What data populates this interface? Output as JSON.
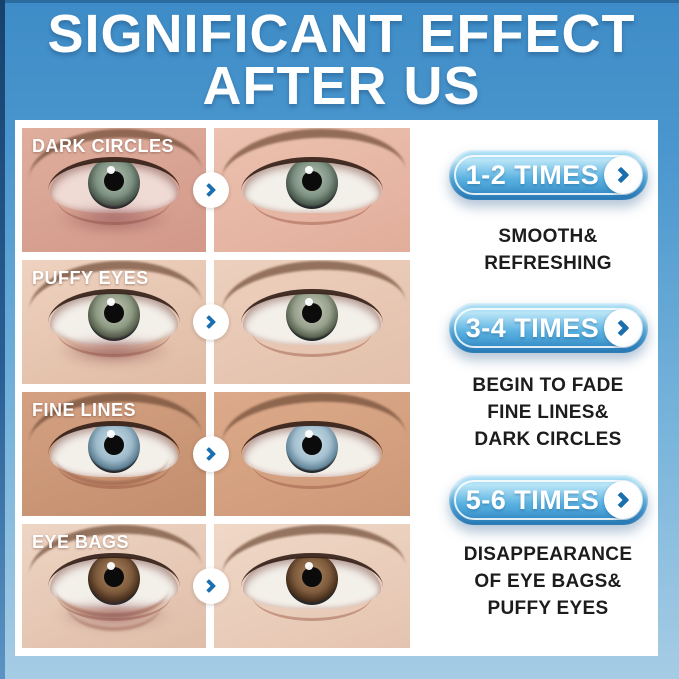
{
  "header": {
    "title_line1": "SIGNIFICANT EFFECT",
    "title_line2": "AFTER US"
  },
  "comparison": {
    "rows": [
      {
        "label": "DARK CIRCLES"
      },
      {
        "label": "PUFFY EYES"
      },
      {
        "label": "FINE LINES"
      },
      {
        "label": "EYE BAGS"
      }
    ]
  },
  "milestones": [
    {
      "times": "1-2 TIMES",
      "lines": [
        "SMOOTH&",
        "REFRESHING"
      ]
    },
    {
      "times": "3-4 TIMES",
      "lines": [
        "BEGIN TO FADE",
        "FINE LINES&",
        "DARK CIRCLES"
      ]
    },
    {
      "times": "5-6 TIMES",
      "lines": [
        "DISAPPEARANCE",
        "OF EYE BAGS&",
        "PUFFY EYES"
      ]
    }
  ],
  "icons": {
    "row_arrow": "chevron-right",
    "pill_arrow": "chevron-right"
  },
  "theme": {
    "background_blue": "#3e8cc7",
    "background_light": "#a6cce5",
    "navy_stripe": "#17416d",
    "pill_top": "#8fd4f2",
    "pill_bottom": "#2f87c3",
    "arrow_blue": "#1b6fae",
    "panel": "#ffffff",
    "text_dark": "#1c1c1c",
    "label_white": "#ffffff"
  }
}
